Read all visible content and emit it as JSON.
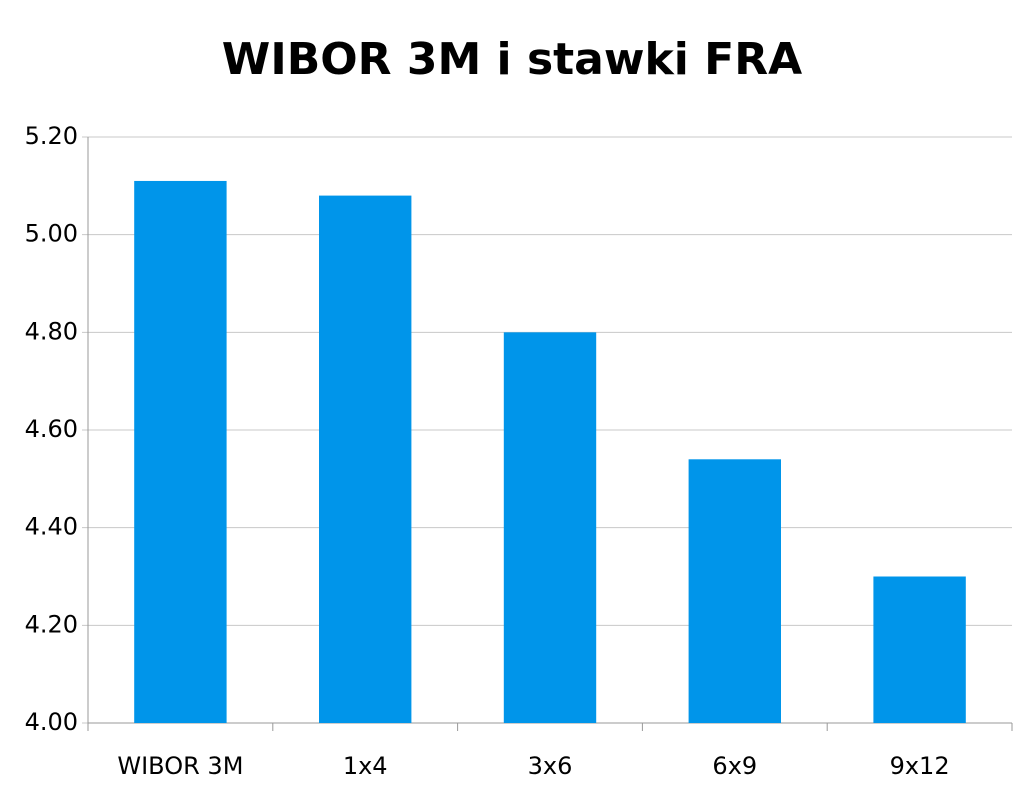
{
  "chart_data": {
    "type": "bar",
    "title": "WIBOR 3M i stawki FRA",
    "categories": [
      "WIBOR 3M",
      "1x4",
      "3x6",
      "6x9",
      "9x12"
    ],
    "values": [
      5.11,
      5.08,
      4.8,
      4.54,
      4.3
    ],
    "color": "#0095ea",
    "ylim": [
      4.0,
      5.2
    ],
    "yticks": [
      {
        "value": 4.0,
        "label": "4.00"
      },
      {
        "value": 4.2,
        "label": "4.20"
      },
      {
        "value": 4.4,
        "label": "4.40"
      },
      {
        "value": 4.6,
        "label": "4.60"
      },
      {
        "value": 4.8,
        "label": "4.80"
      },
      {
        "value": 5.0,
        "label": "5.00"
      },
      {
        "value": 5.2,
        "label": "5.20"
      }
    ],
    "grid": true
  }
}
